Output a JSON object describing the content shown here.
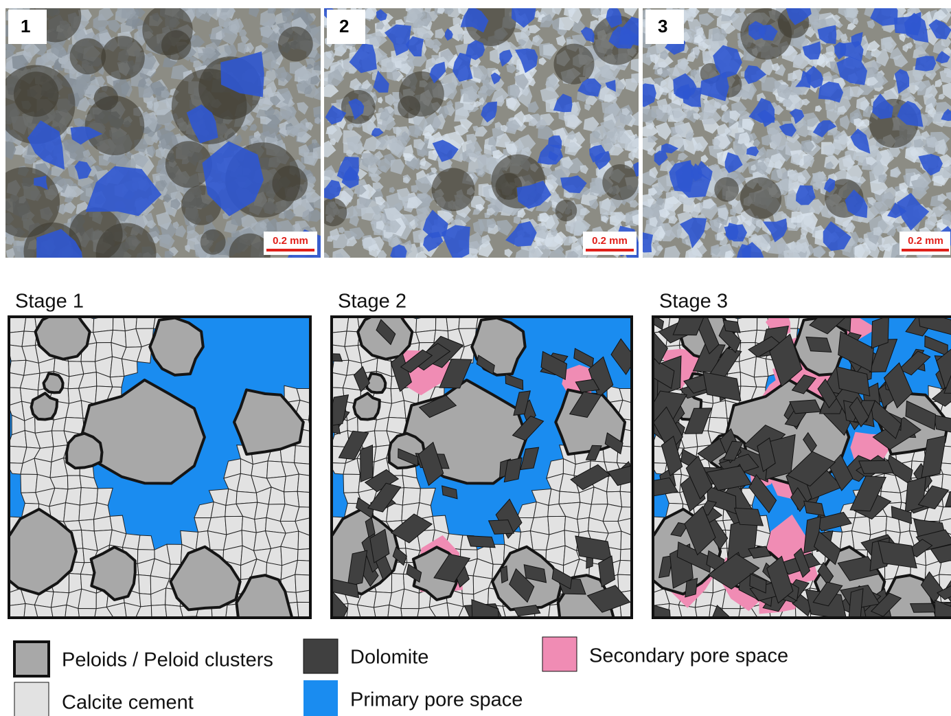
{
  "photos": [
    {
      "label": "1",
      "scale": "0.2 mm"
    },
    {
      "label": "2",
      "scale": "0.2 mm"
    },
    {
      "label": "3",
      "scale": "0.2 mm"
    }
  ],
  "stages": [
    {
      "title": "Stage 1"
    },
    {
      "title": "Stage 2"
    },
    {
      "title": "Stage 3"
    }
  ],
  "legend": [
    {
      "label": "Peloids / Peloid clusters"
    },
    {
      "label": "Calcite cement"
    },
    {
      "label": "Dolomite"
    },
    {
      "label": "Primary pore space"
    },
    {
      "label": "Secondary pore space"
    }
  ]
}
